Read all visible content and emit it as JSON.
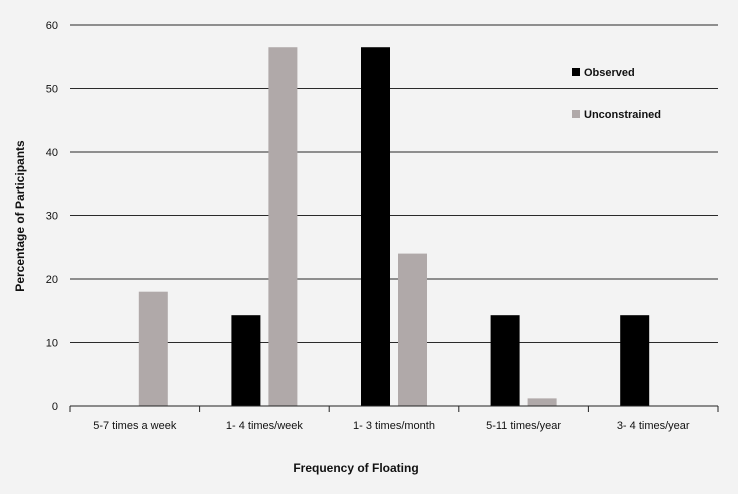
{
  "chart_data": {
    "type": "bar",
    "title": "",
    "xlabel": "Frequency of Floating",
    "ylabel": "Percentage of Participants",
    "ylim": [
      0,
      60
    ],
    "yticks": [
      0,
      10,
      20,
      30,
      40,
      50,
      60
    ],
    "grid": true,
    "legend_position": "top-right",
    "categories": [
      "5-7 times a week",
      "1- 4 times/week",
      "1- 3 times/month",
      "5-11 times/year",
      "3- 4 times/year"
    ],
    "series": [
      {
        "name": "Observed",
        "color": "#000000",
        "values": [
          0,
          14.3,
          56.5,
          14.3,
          14.3
        ]
      },
      {
        "name": "Unconstrained",
        "color": "#b0a9a9",
        "values": [
          18.0,
          56.5,
          24.0,
          1.2,
          0
        ]
      }
    ]
  }
}
